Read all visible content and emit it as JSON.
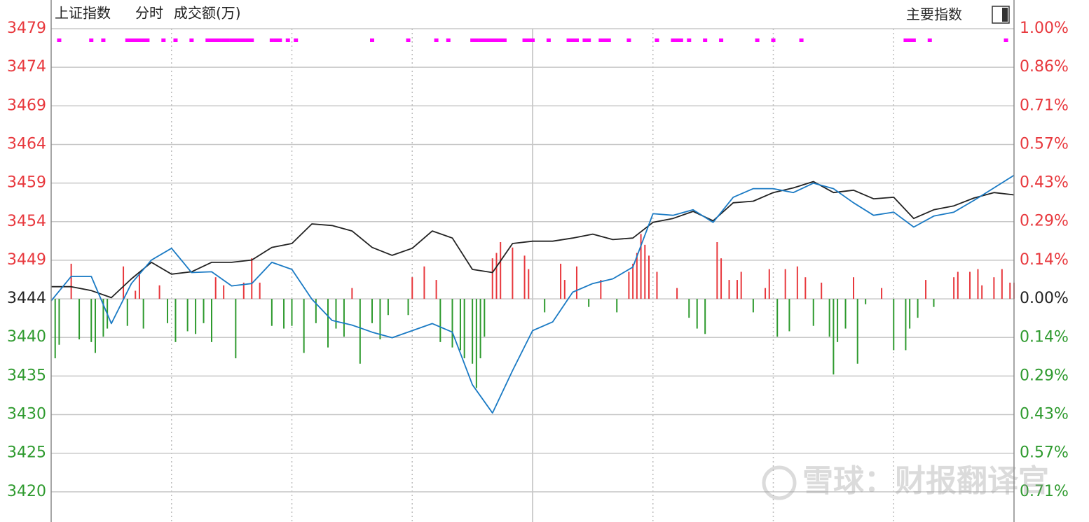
{
  "header": {
    "index_name": "上证指数",
    "mode": "分时",
    "indicator": "成交额(万)",
    "menu": "主要指数"
  },
  "watermark": "雪球：财报翻译官",
  "chart_data": {
    "type": "line",
    "x": [
      0,
      5,
      10,
      15,
      20,
      25,
      30,
      35,
      40,
      45,
      50,
      55,
      60,
      65,
      70,
      75,
      80,
      85,
      90,
      95,
      100,
      105,
      110,
      115,
      120,
      125,
      130,
      135,
      140,
      145,
      150,
      155,
      160,
      165,
      170,
      175,
      180,
      185,
      190,
      195,
      200,
      205,
      210,
      215,
      220,
      225,
      230,
      235,
      240
    ],
    "xlim": [
      0,
      240
    ],
    "xticks": [
      30,
      60,
      90,
      120,
      150,
      180,
      210
    ],
    "ylim": [
      3416.0,
      3478.89
    ],
    "yticks": [
      {
        "value": 3478.89,
        "label": "3479"
      },
      {
        "value": 3473.97,
        "label": "3474"
      },
      {
        "value": 3469.05,
        "label": "3469"
      },
      {
        "value": 3464.13,
        "label": "3464"
      },
      {
        "value": 3459.21,
        "label": "3459"
      },
      {
        "value": 3454.29,
        "label": "3454"
      },
      {
        "value": 3449.37,
        "label": "3449"
      },
      {
        "value": 3444.45,
        "label": "3444"
      },
      {
        "value": 3439.53,
        "label": "3440"
      },
      {
        "value": 3434.61,
        "label": "3435"
      },
      {
        "value": 3429.69,
        "label": "3430"
      },
      {
        "value": 3424.77,
        "label": "3425"
      },
      {
        "value": 3419.85,
        "label": "3420"
      }
    ],
    "y2lim": [
      -0.826,
      1
    ],
    "y2ticks": [
      {
        "value": 1,
        "label": "1.00%"
      },
      {
        "value": 0.857,
        "label": "0.86%"
      },
      {
        "value": 0.714,
        "label": "0.71%"
      },
      {
        "value": 0.571,
        "label": "0.57%"
      },
      {
        "value": 0.429,
        "label": "0.43%"
      },
      {
        "value": 0.286,
        "label": "0.29%"
      },
      {
        "value": 0.143,
        "label": "0.14%"
      },
      {
        "value": 0,
        "label": "0.00%"
      },
      {
        "value": -0.143,
        "label": "0.14%"
      },
      {
        "value": -0.286,
        "label": "0.29%"
      },
      {
        "value": -0.429,
        "label": "0.43%"
      },
      {
        "value": -0.571,
        "label": "0.57%"
      },
      {
        "value": -0.714,
        "label": "0.71%"
      }
    ],
    "grid": true,
    "up_color": "#e8383d",
    "flat_color": "#222222",
    "down_color": "#2e9a2e",
    "series": [
      {
        "color": "#222222",
        "values": [
          3446.0,
          3446.0,
          3445.5,
          3444.6,
          3447.0,
          3449.1,
          3447.6,
          3447.9,
          3449.1,
          3449.1,
          3449.4,
          3451.0,
          3451.5,
          3454.0,
          3453.8,
          3453.1,
          3451.0,
          3450.0,
          3450.9,
          3453.1,
          3452.2,
          3448.2,
          3447.8,
          3451.5,
          3451.8,
          3451.8,
          3452.2,
          3452.7,
          3452.0,
          3452.2,
          3454.2,
          3454.7,
          3455.6,
          3454.4,
          3456.7,
          3456.9,
          3458.0,
          3458.6,
          3459.4,
          3458.0,
          3458.3,
          3457.2,
          3457.4,
          3454.7,
          3455.8,
          3456.3,
          3457.3,
          3458.0,
          3457.7
        ]
      },
      {
        "color": "#1a7ac4",
        "values": [
          3444.2,
          3447.3,
          3447.3,
          3441.3,
          3446.4,
          3449.4,
          3450.9,
          3447.8,
          3447.9,
          3446.1,
          3446.4,
          3449.1,
          3448.2,
          3444.4,
          3441.7,
          3441.1,
          3440.2,
          3439.5,
          3440.4,
          3441.3,
          3440.2,
          3433.5,
          3429.9,
          3435.3,
          3440.4,
          3441.5,
          3445.3,
          3446.4,
          3447.0,
          3448.5,
          3455.3,
          3455.1,
          3455.8,
          3454.2,
          3457.4,
          3458.5,
          3458.5,
          3458.0,
          3459.2,
          3458.5,
          3456.7,
          3455.1,
          3455.5,
          3453.6,
          3455.0,
          3455.5,
          3457.0,
          3458.6,
          3460.2
        ]
      }
    ],
    "bars": {
      "type": "bar",
      "axis": "y2",
      "x": [
        1,
        2,
        5,
        7,
        10,
        11,
        13,
        14,
        18,
        19,
        21,
        22,
        23,
        27,
        29,
        31,
        34,
        36,
        38,
        40,
        41,
        43,
        46,
        48,
        50,
        52,
        55,
        58,
        60,
        63,
        66,
        69,
        71,
        73,
        75,
        77,
        80,
        82,
        84,
        89,
        90,
        93,
        96,
        97,
        100,
        102,
        103,
        105,
        106,
        107,
        108,
        110,
        111,
        112,
        115,
        118,
        119,
        123,
        127,
        128,
        131,
        134,
        137,
        141,
        144,
        145,
        146,
        147,
        148,
        149,
        151,
        156,
        159,
        161,
        163,
        166,
        167,
        169,
        171,
        172,
        175,
        178,
        179,
        181,
        183,
        184,
        186,
        188,
        190,
        192,
        194,
        195,
        196,
        198,
        200,
        201,
        203,
        207,
        210,
        213,
        214,
        216,
        218,
        220,
        225,
        226,
        229,
        231,
        232,
        235,
        237,
        239,
        240
      ],
      "values": [
        -0.22,
        -0.17,
        0.13,
        -0.15,
        -0.16,
        -0.2,
        -0.14,
        -0.11,
        0.12,
        -0.1,
        0.03,
        0.1,
        -0.11,
        0.05,
        -0.09,
        -0.16,
        -0.12,
        -0.13,
        -0.09,
        -0.16,
        0.08,
        0.05,
        -0.22,
        0.06,
        0.15,
        0.06,
        -0.1,
        -0.11,
        -0.1,
        -0.2,
        -0.09,
        -0.18,
        -0.11,
        -0.14,
        0.04,
        -0.24,
        -0.09,
        -0.15,
        -0.06,
        -0.06,
        0.08,
        0.12,
        0.07,
        -0.16,
        -0.18,
        -0.19,
        -0.22,
        -0.24,
        -0.33,
        -0.22,
        -0.14,
        0.15,
        0.17,
        0.21,
        0.19,
        0.16,
        0.11,
        -0.05,
        0.13,
        0.07,
        0.12,
        -0.03,
        0.07,
        -0.05,
        0.1,
        0.13,
        0.17,
        0.24,
        0.2,
        0.16,
        0.1,
        0.04,
        -0.07,
        -0.11,
        -0.13,
        0.21,
        0.15,
        0.07,
        0.07,
        0.1,
        -0.05,
        0.04,
        0.11,
        -0.14,
        0.11,
        -0.12,
        0.12,
        0.08,
        -0.1,
        0.06,
        -0.14,
        -0.28,
        -0.16,
        -0.11,
        0.08,
        -0.24,
        -0.02,
        0.04,
        -0.19,
        -0.19,
        -0.11,
        -0.07,
        0.07,
        -0.03,
        0.08,
        0.1,
        0.1,
        0.11,
        0.05,
        0.08,
        0.11,
        0.06,
        0.06
      ]
    },
    "signals": {
      "color": "#ff00ff",
      "x": [
        2,
        10,
        13,
        19,
        20,
        21,
        22,
        23,
        24,
        28,
        31,
        35,
        39,
        40,
        41,
        42,
        43,
        44,
        45,
        46,
        47,
        48,
        49,
        50,
        55,
        56,
        57,
        59,
        61,
        80,
        89,
        96,
        99,
        105,
        106,
        107,
        108,
        109,
        110,
        111,
        112,
        113,
        118,
        119,
        120,
        124,
        129,
        130,
        131,
        133,
        134,
        137,
        138,
        139,
        144,
        151,
        155,
        156,
        157,
        159,
        163,
        167,
        176,
        180,
        187,
        213,
        214,
        215,
        219,
        238
      ]
    }
  }
}
